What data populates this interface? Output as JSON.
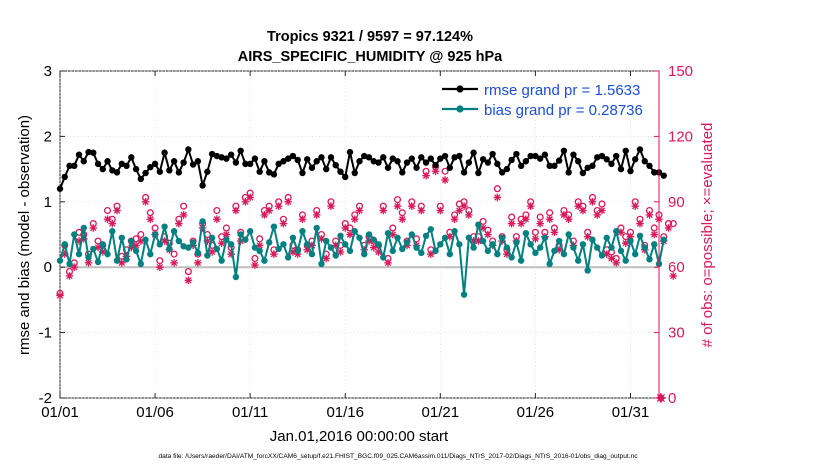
{
  "chart_data": {
    "type": "line",
    "title": "Tropics 9321 / 9597 = 97.124%",
    "subtitle": "AIRS_SPECIFIC_HUMIDITY @ 925 hPa",
    "xlabel": "Jan.01,2016 00:00:00 start",
    "ylabel_left": "rmse and bias (model - observation)",
    "ylabel_right": "# of obs: o=possible; ×=evaluated",
    "footer": "data file: /Users/raeder/DAI/ATM_forcXX/CAM6_setup/f.e21.FHIST_BGC.f09_025.CAM6assim.011/Diags_NTrS_2017-02/Diags_NTrS_2016-01/obs_diag_output.nc",
    "xlim": [
      0,
      31.5
    ],
    "ylim_left": [
      -2,
      3
    ],
    "ylim_right": [
      0,
      150
    ],
    "x_ticks": [
      0,
      5,
      10,
      15,
      20,
      25,
      30
    ],
    "x_tick_labels": [
      "01/01",
      "01/06",
      "01/11",
      "01/16",
      "01/21",
      "01/26",
      "01/31"
    ],
    "y_ticks_left": [
      -2,
      -1,
      0,
      1,
      2,
      3
    ],
    "y_tick_labels_left": [
      "-2",
      "-1",
      "0",
      "1",
      "2",
      "3"
    ],
    "y_ticks_right": [
      0,
      30,
      60,
      90,
      120,
      150
    ],
    "y_tick_labels_right": [
      "0",
      "30",
      "60",
      "90",
      "120",
      "150"
    ],
    "zero_line": 0,
    "time_step_days": 0.25,
    "legend_position": "top-right",
    "colors": {
      "rmse": "#000000",
      "bias": "#008080",
      "obs": "#d9195a",
      "right_axis": "#d9195a",
      "legend_text": "#1a4fd6",
      "zero_line": "#bfbfbf"
    },
    "series": [
      {
        "name": "rmse grand pr = 1.5633",
        "axis": "left",
        "values": [
          1.2,
          1.38,
          1.55,
          1.55,
          1.72,
          1.62,
          1.76,
          1.75,
          1.58,
          1.5,
          1.62,
          1.48,
          1.45,
          1.58,
          1.55,
          1.68,
          1.5,
          1.35,
          1.44,
          1.53,
          1.58,
          1.46,
          1.75,
          1.48,
          1.62,
          1.45,
          1.6,
          1.8,
          1.57,
          1.62,
          1.25,
          1.46,
          1.73,
          1.7,
          1.68,
          1.66,
          1.72,
          1.6,
          1.78,
          1.58,
          1.58,
          1.66,
          1.46,
          1.62,
          1.45,
          1.42,
          1.58,
          1.62,
          1.66,
          1.7,
          1.64,
          1.44,
          1.65,
          1.52,
          1.62,
          1.68,
          1.5,
          1.68,
          1.56,
          1.46,
          1.38,
          1.76,
          1.44,
          1.62,
          1.7,
          1.68,
          1.62,
          1.6,
          1.68,
          1.52,
          1.66,
          1.62,
          1.45,
          1.6,
          1.66,
          1.52,
          1.68,
          1.6,
          1.66,
          1.56,
          1.66,
          1.7,
          1.52,
          1.68,
          1.7,
          1.45,
          1.6,
          1.75,
          1.44,
          1.65,
          1.6,
          1.73,
          1.58,
          1.45,
          1.5,
          1.64,
          1.73,
          1.55,
          1.62,
          1.7,
          1.7,
          1.66,
          1.72,
          1.55,
          1.55,
          1.63,
          1.78,
          1.45,
          1.72,
          1.62,
          1.44,
          1.52,
          1.55,
          1.68,
          1.7,
          1.65,
          1.58,
          1.7,
          1.5,
          1.78,
          1.47,
          1.65,
          1.8,
          1.62,
          1.55,
          1.45,
          1.45,
          1.4
        ]
      },
      {
        "name": "bias grand pr = 0.28736",
        "axis": "left",
        "values": [
          0.1,
          0.35,
          0.05,
          0.5,
          0.2,
          0.6,
          0.15,
          0.28,
          0.08,
          0.35,
          0.2,
          0.55,
          0.1,
          0.45,
          0.12,
          0.4,
          0.25,
          0.05,
          0.42,
          0.2,
          0.5,
          0.35,
          0.62,
          0.28,
          0.55,
          0.4,
          0.32,
          0.3,
          0.38,
          0.22,
          0.7,
          0.18,
          0.45,
          0.28,
          0.1,
          0.42,
          0.35,
          -0.15,
          0.5,
          0.42,
          0.55,
          0.3,
          0.25,
          0.1,
          0.38,
          0.62,
          0.28,
          0.35,
          0.15,
          0.45,
          0.25,
          0.55,
          0.35,
          0.2,
          0.6,
          0.05,
          0.4,
          0.3,
          0.18,
          0.48,
          0.35,
          0.25,
          0.55,
          0.45,
          0.2,
          0.5,
          0.42,
          0.35,
          0.15,
          0.52,
          0.25,
          0.45,
          0.28,
          0.38,
          0.5,
          0.3,
          0.22,
          0.48,
          0.58,
          0.25,
          0.35,
          0.45,
          0.2,
          0.55,
          0.35,
          -0.42,
          0.45,
          0.3,
          0.65,
          0.4,
          0.25,
          0.35,
          0.2,
          0.45,
          0.3,
          0.15,
          0.38,
          0.1,
          0.52,
          0.35,
          0.22,
          0.3,
          0.45,
          0.05,
          0.25,
          0.4,
          0.2,
          0.5,
          0.3,
          0.1,
          0.35,
          -0.05,
          0.42,
          0.3,
          0.18,
          0.45,
          0.3,
          0.55,
          0.25,
          0.1,
          0.4,
          0.2,
          0.48,
          0.3,
          0.12,
          0.35,
          0.05,
          0.42
        ]
      },
      {
        "name": "possible",
        "axis": "right",
        "marker": "circle",
        "values": [
          48,
          70,
          58,
          62,
          76,
          75,
          66,
          80,
          72,
          70,
          86,
          82,
          88,
          65,
          68,
          72,
          73,
          75,
          92,
          85,
          78,
          63,
          74,
          71,
          66,
          82,
          88,
          58,
          72,
          66,
          80,
          75,
          70,
          86,
          74,
          78,
          69,
          88,
          76,
          92,
          94,
          64,
          73,
          86,
          88,
          68,
          90,
          82,
          92,
          70,
          68,
          84,
          70,
          72,
          86,
          75,
          66,
          90,
          72,
          70,
          80,
          78,
          84,
          88,
          70,
          74,
          72,
          70,
          88,
          64,
          78,
          91,
          85,
          72,
          90,
          73,
          88,
          104,
          68,
          106,
          88,
          104,
          76,
          84,
          89,
          90,
          86,
          74,
          74,
          81,
          77,
          72,
          96,
          74,
          68,
          83,
          74,
          82,
          84,
          90,
          76,
          83,
          76,
          85,
          78,
          70,
          86,
          84,
          72,
          90,
          88,
          76,
          92,
          86,
          89,
          68,
          67,
          64,
          78,
          74,
          76,
          90,
          82,
          70,
          86,
          78,
          84,
          74,
          80,
          80
        ]
      },
      {
        "name": "evaluated",
        "axis": "right",
        "marker": "star",
        "values": [
          47,
          66,
          56,
          60,
          72,
          73,
          62,
          78,
          69,
          67,
          82,
          80,
          86,
          62,
          65,
          69,
          70,
          72,
          90,
          82,
          75,
          60,
          72,
          68,
          62,
          80,
          84,
          54,
          70,
          62,
          78,
          72,
          67,
          82,
          71,
          75,
          66,
          86,
          72,
          90,
          92,
          61,
          70,
          84,
          86,
          66,
          88,
          80,
          90,
          67,
          66,
          82,
          68,
          70,
          84,
          73,
          64,
          88,
          70,
          67,
          78,
          75,
          82,
          86,
          68,
          72,
          69,
          67,
          86,
          62,
          75,
          88,
          82,
          70,
          88,
          70,
          86,
          102,
          66,
          104,
          86,
          100,
          74,
          82,
          86,
          88,
          84,
          72,
          72,
          78,
          75,
          70,
          92,
          72,
          66,
          80,
          72,
          80,
          82,
          88,
          73,
          80,
          74,
          82,
          76,
          68,
          84,
          82,
          70,
          88,
          86,
          74,
          90,
          84,
          86,
          66,
          64,
          62,
          76,
          71,
          74,
          88,
          80,
          68,
          84,
          75,
          82,
          72,
          78,
          56
        ]
      }
    ],
    "extra_marker": {
      "name": "evaluated",
      "x": 31.6,
      "y": 0
    }
  }
}
